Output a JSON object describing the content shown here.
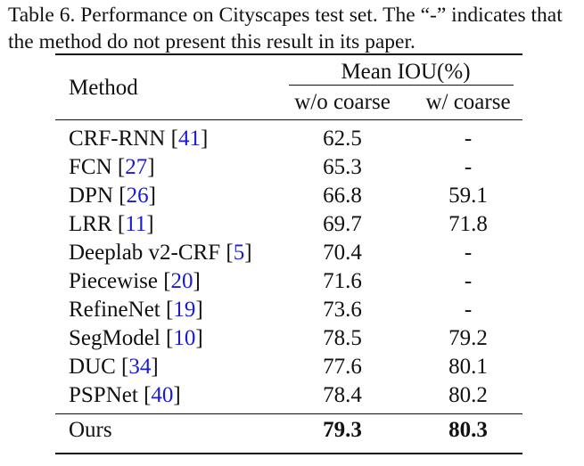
{
  "caption": "Table 6. Performance on Cityscapes test set. The “-” indicates that the method do not present this result in its paper.",
  "caption_line1": "Table 6. Performance on Cityscapes test set. The “-” indicates that",
  "caption_line2": "the method do not present this result in its paper.",
  "header": {
    "method": "Method",
    "group": "Mean IOU(%)",
    "col1": "w/o coarse",
    "col2": "w/ coarse"
  },
  "rows": [
    {
      "name": "CRF-RNN",
      "ref": "41",
      "wo": "62.5",
      "w": "-"
    },
    {
      "name": "FCN",
      "ref": "27",
      "wo": "65.3",
      "w": "-"
    },
    {
      "name": "DPN",
      "ref": "26",
      "wo": "66.8",
      "w": "59.1"
    },
    {
      "name": "LRR",
      "ref": "11",
      "wo": "69.7",
      "w": "71.8"
    },
    {
      "name": "Deeplab v2-CRF",
      "ref": "5",
      "wo": "70.4",
      "w": "-"
    },
    {
      "name": "Piecewise",
      "ref": "20",
      "wo": "71.6",
      "w": "-"
    },
    {
      "name": "RefineNet",
      "ref": "19",
      "wo": "73.6",
      "w": "-"
    },
    {
      "name": "SegModel",
      "ref": "10",
      "wo": "78.5",
      "w": "79.2"
    },
    {
      "name": "DUC",
      "ref": "34",
      "wo": "77.6",
      "w": "80.1"
    },
    {
      "name": "PSPNet",
      "ref": "40",
      "wo": "78.4",
      "w": "80.2"
    }
  ],
  "ours": {
    "name": "Ours",
    "wo": "79.3",
    "w": "80.3"
  },
  "colors": {
    "citation": "#1a1ad6",
    "text": "#111111"
  }
}
